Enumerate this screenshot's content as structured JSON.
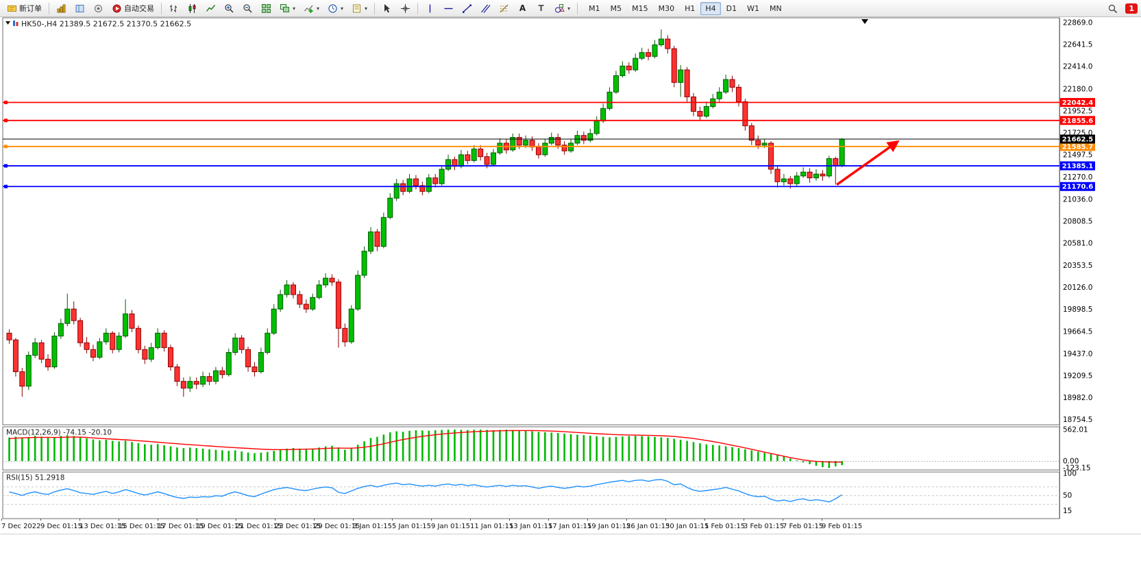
{
  "toolbar": {
    "new_order": "新订单",
    "auto_trading": "自动交易",
    "timeframes": [
      "M1",
      "M5",
      "M15",
      "M30",
      "H1",
      "H4",
      "D1",
      "W1",
      "MN"
    ],
    "active_timeframe": "H4",
    "notification_badge": "1"
  },
  "chart_data": {
    "type": "candlestick",
    "symbol": "HK50-",
    "period": "H4",
    "title_overlay": "HK50-,H4  21389.5 21672.5 21370.5 21662.5",
    "last_ohlc": {
      "open": 21389.5,
      "high": 21672.5,
      "low": 21370.5,
      "close": 21662.5
    },
    "up_color": "#00c000",
    "down_color": "#ff3232",
    "price_axis_labels": [
      "22869.0",
      "22641.5",
      "22414.0",
      "22180.0",
      "21952.5",
      "21725.0",
      "21497.5",
      "21270.0",
      "21036.0",
      "20808.5",
      "20581.0",
      "20353.5",
      "20126.0",
      "19898.5",
      "19664.5",
      "19437.0",
      "19209.5",
      "18982.0",
      "18754.5"
    ],
    "time_axis_labels": [
      "7 Dec 2022",
      "9 Dec 01:15",
      "13 Dec 01:15",
      "15 Dec 01:15",
      "17 Dec 01:15",
      "19 Dec 01:15",
      "21 Dec 01:15",
      "23 Dec 01:15",
      "29 Dec 01:15",
      "3 Jan 01:15",
      "5 Jan 01:15",
      "9 Jan 01:15",
      "11 Jan 01:15",
      "13 Jan 01:15",
      "17 Jan 01:15",
      "19 Jan 01:15",
      "26 Jan 01:15",
      "30 Jan 01:15",
      "1 Feb 01:15",
      "3 Feb 01:15",
      "7 Feb 01:15",
      "9 Feb 01:15"
    ],
    "horizontal_lines": [
      {
        "price": 22042.4,
        "label": "22042.4",
        "color": "#ff0000"
      },
      {
        "price": 21855.6,
        "label": "21855.6",
        "color": "#ff0000"
      },
      {
        "price": 21585.7,
        "label": "21585.7",
        "color": "#ff8c00"
      },
      {
        "price": 21385.1,
        "label": "21385.1",
        "color": "#0000ff"
      },
      {
        "price": 21170.6,
        "label": "21170.6",
        "color": "#0000ff"
      }
    ],
    "current_price": {
      "price": 21662.5,
      "label": "21662.5",
      "color": "#000000"
    },
    "candles": [
      [
        19650,
        19690,
        19540,
        19580
      ],
      [
        19580,
        19600,
        19200,
        19250
      ],
      [
        19250,
        19290,
        18990,
        19100
      ],
      [
        19100,
        19460,
        19060,
        19420
      ],
      [
        19420,
        19600,
        19390,
        19550
      ],
      [
        19550,
        19580,
        19340,
        19380
      ],
      [
        19380,
        19430,
        19260,
        19300
      ],
      [
        19300,
        19660,
        19280,
        19620
      ],
      [
        19620,
        19800,
        19590,
        19750
      ],
      [
        19750,
        20060,
        19720,
        19900
      ],
      [
        19900,
        19980,
        19740,
        19780
      ],
      [
        19780,
        19810,
        19510,
        19550
      ],
      [
        19550,
        19610,
        19440,
        19480
      ],
      [
        19480,
        19530,
        19360,
        19400
      ],
      [
        19400,
        19600,
        19380,
        19560
      ],
      [
        19560,
        19700,
        19530,
        19650
      ],
      [
        19650,
        19670,
        19440,
        19480
      ],
      [
        19480,
        19660,
        19450,
        19620
      ],
      [
        19620,
        20000,
        19600,
        19850
      ],
      [
        19850,
        19890,
        19660,
        19700
      ],
      [
        19700,
        19730,
        19440,
        19480
      ],
      [
        19480,
        19520,
        19330,
        19380
      ],
      [
        19380,
        19550,
        19350,
        19500
      ],
      [
        19500,
        19700,
        19480,
        19650
      ],
      [
        19650,
        19680,
        19460,
        19500
      ],
      [
        19500,
        19530,
        19260,
        19300
      ],
      [
        19300,
        19330,
        19100,
        19150
      ],
      [
        19150,
        19190,
        18990,
        19080
      ],
      [
        19080,
        19200,
        19040,
        19150
      ],
      [
        19150,
        19190,
        19070,
        19120
      ],
      [
        19120,
        19250,
        19090,
        19200
      ],
      [
        19200,
        19240,
        19110,
        19150
      ],
      [
        19150,
        19300,
        19120,
        19260
      ],
      [
        19260,
        19300,
        19180,
        19220
      ],
      [
        19220,
        19490,
        19200,
        19450
      ],
      [
        19450,
        19650,
        19420,
        19600
      ],
      [
        19600,
        19630,
        19440,
        19480
      ],
      [
        19480,
        19510,
        19250,
        19300
      ],
      [
        19300,
        19350,
        19200,
        19250
      ],
      [
        19250,
        19500,
        19230,
        19450
      ],
      [
        19450,
        19700,
        19430,
        19650
      ],
      [
        19650,
        19950,
        19630,
        19900
      ],
      [
        19900,
        20100,
        19870,
        20050
      ],
      [
        20050,
        20200,
        20020,
        20150
      ],
      [
        20150,
        20180,
        20010,
        20050
      ],
      [
        20050,
        20090,
        19910,
        19950
      ],
      [
        19950,
        20000,
        19860,
        19900
      ],
      [
        19900,
        20060,
        19880,
        20020
      ],
      [
        20020,
        20200,
        20000,
        20150
      ],
      [
        20150,
        20270,
        20120,
        20220
      ],
      [
        20220,
        20260,
        20140,
        20180
      ],
      [
        20180,
        20210,
        19500,
        19700
      ],
      [
        19700,
        19750,
        19510,
        19560
      ],
      [
        19560,
        19940,
        19540,
        19900
      ],
      [
        19900,
        20300,
        19880,
        20250
      ],
      [
        20250,
        20550,
        20220,
        20500
      ],
      [
        20500,
        20750,
        20470,
        20700
      ],
      [
        20700,
        20730,
        20500,
        20550
      ],
      [
        20550,
        20900,
        20530,
        20850
      ],
      [
        20850,
        21100,
        20830,
        21050
      ],
      [
        21050,
        21250,
        21020,
        21200
      ],
      [
        21200,
        21240,
        21080,
        21120
      ],
      [
        21120,
        21300,
        21100,
        21250
      ],
      [
        21250,
        21290,
        21140,
        21180
      ],
      [
        21180,
        21220,
        21080,
        21120
      ],
      [
        21120,
        21300,
        21100,
        21260
      ],
      [
        21260,
        21300,
        21160,
        21200
      ],
      [
        21200,
        21390,
        21180,
        21350
      ],
      [
        21350,
        21500,
        21330,
        21450
      ],
      [
        21450,
        21480,
        21340,
        21380
      ],
      [
        21380,
        21550,
        21360,
        21500
      ],
      [
        21500,
        21540,
        21400,
        21440
      ],
      [
        21440,
        21600,
        21420,
        21560
      ],
      [
        21560,
        21600,
        21440,
        21480
      ],
      [
        21480,
        21520,
        21360,
        21400
      ],
      [
        21400,
        21560,
        21380,
        21520
      ],
      [
        21520,
        21670,
        21500,
        21620
      ],
      [
        21620,
        21660,
        21510,
        21550
      ],
      [
        21550,
        21720,
        21530,
        21680
      ],
      [
        21680,
        21720,
        21560,
        21600
      ],
      [
        21600,
        21700,
        21570,
        21650
      ],
      [
        21650,
        21690,
        21540,
        21580
      ],
      [
        21580,
        21620,
        21460,
        21500
      ],
      [
        21500,
        21660,
        21480,
        21620
      ],
      [
        21620,
        21730,
        21600,
        21680
      ],
      [
        21680,
        21720,
        21560,
        21600
      ],
      [
        21600,
        21640,
        21500,
        21540
      ],
      [
        21540,
        21660,
        21520,
        21620
      ],
      [
        21620,
        21750,
        21600,
        21700
      ],
      [
        21700,
        21740,
        21610,
        21650
      ],
      [
        21650,
        21770,
        21630,
        21720
      ],
      [
        21720,
        21900,
        21700,
        21850
      ],
      [
        21850,
        22030,
        21830,
        21980
      ],
      [
        21980,
        22200,
        21960,
        22150
      ],
      [
        22150,
        22370,
        22130,
        22320
      ],
      [
        22320,
        22470,
        22300,
        22420
      ],
      [
        22420,
        22460,
        22340,
        22380
      ],
      [
        22380,
        22550,
        22360,
        22500
      ],
      [
        22500,
        22610,
        22480,
        22560
      ],
      [
        22560,
        22600,
        22480,
        22520
      ],
      [
        22520,
        22690,
        22500,
        22640
      ],
      [
        22640,
        22800,
        22620,
        22700
      ],
      [
        22700,
        22740,
        22550,
        22600
      ],
      [
        22600,
        22630,
        22200,
        22250
      ],
      [
        22250,
        22430,
        22100,
        22380
      ],
      [
        22380,
        22410,
        22050,
        22100
      ],
      [
        22100,
        22140,
        21900,
        21950
      ],
      [
        21950,
        22000,
        21860,
        21900
      ],
      [
        21900,
        22050,
        21880,
        22000
      ],
      [
        22000,
        22130,
        21980,
        22080
      ],
      [
        22080,
        22200,
        22050,
        22150
      ],
      [
        22150,
        22330,
        22130,
        22280
      ],
      [
        22280,
        22320,
        22150,
        22200
      ],
      [
        22200,
        22230,
        22000,
        22050
      ],
      [
        22050,
        22080,
        21750,
        21800
      ],
      [
        21800,
        21830,
        21600,
        21650
      ],
      [
        21650,
        21700,
        21560,
        21600
      ],
      [
        21600,
        21660,
        21570,
        21620
      ],
      [
        21620,
        21640,
        21300,
        21350
      ],
      [
        21350,
        21380,
        21160,
        21220
      ],
      [
        21220,
        21300,
        21180,
        21250
      ],
      [
        21250,
        21280,
        21150,
        21200
      ],
      [
        21200,
        21320,
        21170,
        21280
      ],
      [
        21280,
        21370,
        21260,
        21320
      ],
      [
        21320,
        21360,
        21210,
        21260
      ],
      [
        21260,
        21350,
        21230,
        21300
      ],
      [
        21300,
        21340,
        21230,
        21280
      ],
      [
        21280,
        21490,
        21260,
        21460
      ],
      [
        21460,
        21480,
        21190,
        21390
      ],
      [
        21389.5,
        21672.5,
        21370.5,
        21662.5
      ]
    ],
    "indicators": {
      "macd": {
        "label": "MACD(12,26,9) -74.15 -20.10",
        "value": -74.15,
        "signal_value": -20.1,
        "axis_labels": [
          "562.01",
          "0.00",
          "-123.15"
        ],
        "histogram_color": "#00b800",
        "signal_color": "#ff0000",
        "histogram": [
          420,
          435,
          410,
          430,
          450,
          435,
          415,
          430,
          450,
          460,
          445,
          425,
          405,
          385,
          370,
          380,
          360,
          350,
          362,
          340,
          320,
          300,
          290,
          302,
          282,
          262,
          242,
          230,
          240,
          230,
          220,
          210,
          200,
          192,
          182,
          190,
          170,
          152,
          140,
          150,
          162,
          182,
          202,
          222,
          232,
          222,
          212,
          222,
          242,
          262,
          272,
          242,
          202,
          232,
          292,
          352,
          412,
          432,
          472,
          512,
          530,
          522,
          540,
          550,
          546,
          542,
          550,
          556,
          560,
          562,
          558,
          554,
          560,
          562,
          556,
          550,
          556,
          560,
          554,
          550,
          540,
          530,
          520,
          514,
          508,
          500,
          490,
          480,
          470,
          462,
          452,
          442,
          432,
          424,
          430,
          438,
          446,
          452,
          446,
          440,
          432,
          424,
          412,
          398,
          380,
          360,
          338,
          316,
          298,
          288,
          278,
          264,
          248,
          230,
          210,
          190,
          168,
          146,
          124,
          102,
          80,
          45,
          10,
          -25,
          -55,
          -85,
          -110,
          -123.15,
          -95,
          -74.15
        ],
        "signal": [
          400,
          408,
          414,
          418,
          421,
          423,
          422,
          420,
          422,
          426,
          428,
          426,
          421,
          413,
          405,
          398,
          391,
          384,
          378,
          371,
          363,
          354,
          345,
          336,
          327,
          318,
          309,
          300,
          292,
          284,
          276,
          268,
          260,
          252,
          245,
          239,
          232,
          225,
          218,
          212,
          207,
          204,
          203,
          204,
          207,
          210,
          212,
          214,
          218,
          224,
          229,
          231,
          229,
          229,
          235,
          246,
          263,
          284,
          308,
          335,
          360,
          383,
          404,
          424,
          441,
          456,
          469,
          481,
          492,
          502,
          510,
          517,
          523,
          529,
          533,
          537,
          540,
          542,
          544,
          545,
          545,
          544,
          542,
          539,
          535,
          530,
          524,
          517,
          510,
          503,
          496,
          489,
          483,
          477,
          472,
          468,
          465,
          463,
          461,
          459,
          456,
          452,
          446,
          438,
          428,
          416,
          402,
          386,
          368,
          348,
          327,
          305,
          282,
          258,
          234,
          210,
          185,
          160,
          135,
          110,
          86,
          62,
          40,
          20,
          4,
          -6,
          -12,
          -17,
          -19,
          -20.1
        ]
      },
      "rsi": {
        "label": "RSI(15) 51.2918",
        "value": 51.2918,
        "axis_labels": [
          "100",
          "50",
          "15"
        ],
        "line_color": "#1e90ff",
        "values": [
          58,
          54,
          50,
          55,
          58,
          54,
          52,
          58,
          62,
          65,
          61,
          56,
          54,
          52,
          56,
          59,
          54,
          58,
          63,
          59,
          54,
          51,
          54,
          58,
          54,
          49,
          45,
          43,
          46,
          45,
          47,
          46,
          49,
          48,
          54,
          58,
          54,
          49,
          47,
          53,
          58,
          63,
          66,
          68,
          65,
          62,
          61,
          64,
          67,
          69,
          67,
          57,
          54,
          60,
          66,
          70,
          73,
          69,
          73,
          76,
          78,
          74,
          76,
          73,
          71,
          73,
          71,
          74,
          76,
          73,
          75,
          72,
          74,
          71,
          69,
          71,
          73,
          70,
          73,
          71,
          72,
          69,
          66,
          69,
          71,
          68,
          66,
          68,
          71,
          69,
          71,
          74,
          77,
          80,
          82,
          84,
          81,
          84,
          85,
          82,
          85,
          86,
          82,
          74,
          76,
          68,
          62,
          59,
          61,
          63,
          65,
          68,
          64,
          60,
          54,
          49,
          47,
          48,
          41,
          37,
          39,
          36,
          40,
          42,
          38,
          40,
          38,
          35,
          42,
          51.29
        ]
      }
    },
    "annotations": {
      "trend_arrow": {
        "from_bar": 128.2,
        "from_price": 21190,
        "to_bar": 137.6,
        "to_price": 21635,
        "color": "#ff0000"
      }
    }
  }
}
